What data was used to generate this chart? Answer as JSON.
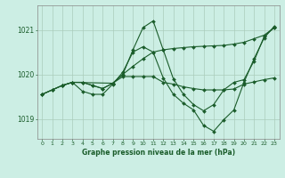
{
  "bg_color": "#cceee4",
  "grid_color": "#aaccbb",
  "line_color": "#1a5c2a",
  "marker_color": "#1a5c2a",
  "xlabel": "Graphe pression niveau de la mer (hPa)",
  "ylim_min": 1018.55,
  "ylim_max": 1021.55,
  "yticks": [
    1019,
    1020,
    1021
  ],
  "xticks": [
    0,
    1,
    2,
    3,
    4,
    5,
    6,
    7,
    8,
    9,
    10,
    11,
    12,
    13,
    14,
    15,
    16,
    17,
    18,
    19,
    20,
    21,
    22,
    23
  ],
  "series1_x": [
    0,
    1,
    2,
    3,
    4,
    5,
    6,
    7,
    8,
    9,
    10,
    11,
    12,
    13,
    14,
    15,
    16,
    17,
    18,
    19,
    20,
    21,
    22,
    23
  ],
  "series1_y": [
    1019.55,
    1019.65,
    1019.75,
    1019.82,
    1019.82,
    1019.75,
    1019.68,
    1019.8,
    1020.0,
    1020.18,
    1020.35,
    1020.5,
    1020.55,
    1020.58,
    1020.6,
    1020.62,
    1020.63,
    1020.64,
    1020.65,
    1020.68,
    1020.72,
    1020.8,
    1020.88,
    1021.05
  ],
  "series2_x": [
    0,
    1,
    2,
    3,
    4,
    5,
    6,
    7,
    8,
    9,
    10,
    11,
    12,
    13,
    14,
    15,
    16,
    17,
    18,
    19,
    20,
    21,
    22,
    23
  ],
  "series2_y": [
    1019.55,
    1019.65,
    1019.75,
    1019.82,
    1019.82,
    1019.75,
    1019.68,
    1019.8,
    1020.0,
    1020.55,
    1021.05,
    1021.2,
    1020.55,
    1019.9,
    1019.55,
    1019.32,
    1019.18,
    1019.32,
    1019.65,
    1019.82,
    1019.88,
    1020.3,
    1020.85,
    1021.05
  ],
  "series3_x": [
    0,
    2,
    3,
    4,
    5,
    6,
    7,
    8,
    9,
    10,
    11,
    12,
    13,
    14,
    15,
    16,
    17,
    18,
    19,
    20,
    21,
    22,
    23
  ],
  "series3_y": [
    1019.55,
    1019.75,
    1019.82,
    1019.62,
    1019.55,
    1019.55,
    1019.78,
    1020.05,
    1020.5,
    1020.62,
    1020.5,
    1019.92,
    1019.55,
    1019.35,
    1019.2,
    1018.85,
    1018.72,
    1018.98,
    1019.2,
    1019.82,
    1020.35,
    1020.82,
    1021.08
  ],
  "series4_x": [
    2,
    3,
    7,
    8,
    9,
    10,
    11,
    12,
    13,
    14,
    15,
    16,
    17,
    18,
    19,
    20,
    21,
    22,
    23
  ],
  "series4_y": [
    1019.75,
    1019.82,
    1019.8,
    1019.95,
    1019.95,
    1019.95,
    1019.95,
    1019.82,
    1019.78,
    1019.72,
    1019.68,
    1019.65,
    1019.65,
    1019.65,
    1019.67,
    1019.78,
    1019.83,
    1019.88,
    1019.92
  ]
}
